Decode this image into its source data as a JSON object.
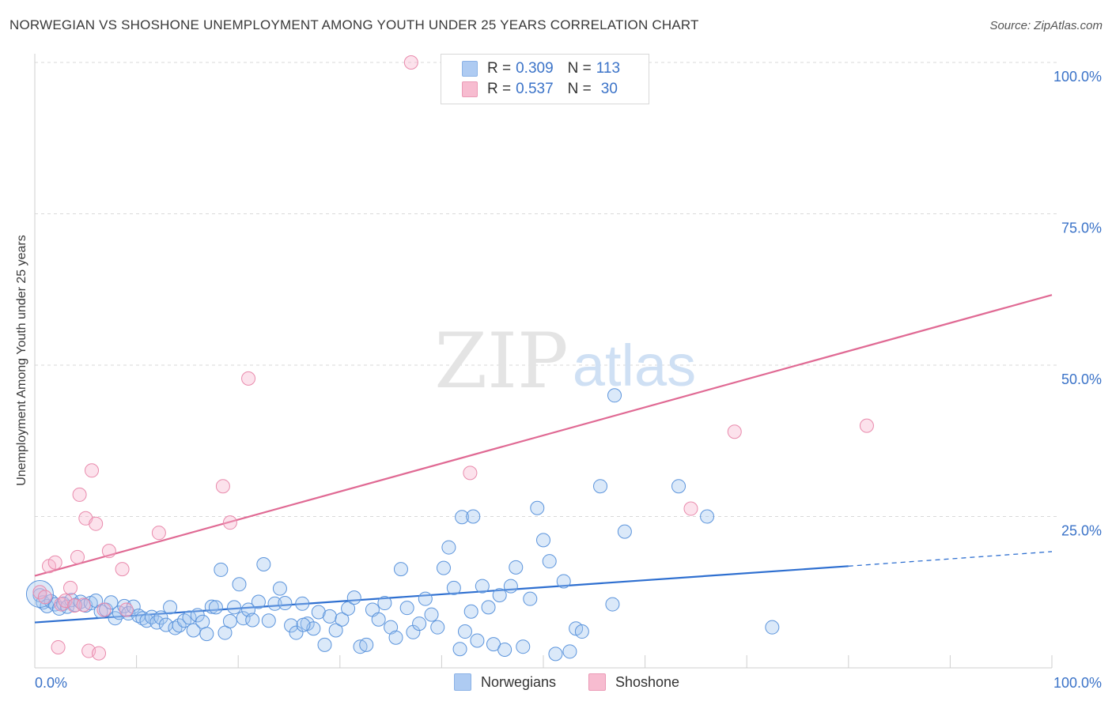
{
  "title": "NORWEGIAN VS SHOSHONE UNEMPLOYMENT AMONG YOUTH UNDER 25 YEARS CORRELATION CHART",
  "source": "Source: ZipAtlas.com",
  "watermark": {
    "zip": "ZIP",
    "atlas": "atlas"
  },
  "legend": {
    "rows": [
      {
        "r_label": "R =",
        "r_value": "0.309",
        "n_label": "N =",
        "n_value": "113",
        "color": "#aecbf2"
      },
      {
        "r_label": "R =",
        "r_value": "0.537",
        "n_label": "N =",
        "n_value": "30",
        "color": "#f7bcd0"
      }
    ]
  },
  "bottom_legend": [
    {
      "label": "Norwegians",
      "color": "#aecbf2"
    },
    {
      "label": "Shoshone",
      "color": "#f7bcd0"
    }
  ],
  "colors": {
    "blue_point_fill": "rgba(160,196,240,0.38)",
    "blue_point_stroke": "#5b94dc",
    "pink_point_fill": "rgba(248,180,204,0.38)",
    "pink_point_stroke": "#e98aac",
    "blue_line": "#2e6fd0",
    "pink_line": "#e06a94",
    "tick_label": "#3b73c8",
    "grid": "#d9d9d9"
  },
  "chart_data": {
    "type": "scatter",
    "title": "NORWEGIAN VS SHOSHONE UNEMPLOYMENT AMONG YOUTH UNDER 25 YEARS CORRELATION CHART",
    "xlabel": "",
    "ylabel": "Unemployment Among Youth under 25 years",
    "xlim": [
      0,
      100
    ],
    "ylim": [
      0,
      100
    ],
    "x_tick_labels": [
      {
        "value": 0,
        "label": "0.0%"
      },
      {
        "value": 100,
        "label": "100.0%"
      }
    ],
    "y_tick_labels": [
      {
        "value": 25,
        "label": "25.0%"
      },
      {
        "value": 50,
        "label": "50.0%"
      },
      {
        "value": 75,
        "label": "75.0%"
      },
      {
        "value": 100,
        "label": "100.0%"
      }
    ],
    "series": [
      {
        "name": "Norwegians",
        "r": 0.309,
        "n": 113,
        "trend": {
          "x0": 0,
          "y0": 7.5,
          "x1": 80,
          "y1": 16.8,
          "dashed_to_x": 100,
          "dashed_to_y": 19.2
        },
        "points": [
          [
            0.5,
            12
          ],
          [
            0.8,
            10.8
          ],
          [
            1.2,
            10.2
          ],
          [
            1.6,
            11
          ],
          [
            2.0,
            10.5
          ],
          [
            2.4,
            9.8
          ],
          [
            2.8,
            10.6
          ],
          [
            3.2,
            10.1
          ],
          [
            3.6,
            11.2
          ],
          [
            4.0,
            10.4
          ],
          [
            4.5,
            10.9
          ],
          [
            5.0,
            10.3
          ],
          [
            5.5,
            10.7
          ],
          [
            6.0,
            11.1
          ],
          [
            6.5,
            9.3
          ],
          [
            7.0,
            9.6
          ],
          [
            7.5,
            10.8
          ],
          [
            7.9,
            8.2
          ],
          [
            8.3,
            9.1
          ],
          [
            8.8,
            10.2
          ],
          [
            9.2,
            9.0
          ],
          [
            9.7,
            10.1
          ],
          [
            10.2,
            8.6
          ],
          [
            10.6,
            8.2
          ],
          [
            11.0,
            7.8
          ],
          [
            11.5,
            8.4
          ],
          [
            12.0,
            7.5
          ],
          [
            12.4,
            8.3
          ],
          [
            12.9,
            7.1
          ],
          [
            13.3,
            10.0
          ],
          [
            13.8,
            6.6
          ],
          [
            14.2,
            7.0
          ],
          [
            14.7,
            7.8
          ],
          [
            15.2,
            8.3
          ],
          [
            15.6,
            6.2
          ],
          [
            16.0,
            8.7
          ],
          [
            16.5,
            7.6
          ],
          [
            16.9,
            5.6
          ],
          [
            17.4,
            10.1
          ],
          [
            17.8,
            10.0
          ],
          [
            18.3,
            16.2
          ],
          [
            18.7,
            5.8
          ],
          [
            19.2,
            7.7
          ],
          [
            19.6,
            10.0
          ],
          [
            20.1,
            13.8
          ],
          [
            20.5,
            8.2
          ],
          [
            21.0,
            9.6
          ],
          [
            21.4,
            7.9
          ],
          [
            22.0,
            10.9
          ],
          [
            22.5,
            17.1
          ],
          [
            23.0,
            7.8
          ],
          [
            23.6,
            10.6
          ],
          [
            24.1,
            13.1
          ],
          [
            24.6,
            10.7
          ],
          [
            25.2,
            7.0
          ],
          [
            25.7,
            5.8
          ],
          [
            26.3,
            10.6
          ],
          [
            26.8,
            7.3
          ],
          [
            27.4,
            6.5
          ],
          [
            27.9,
            9.2
          ],
          [
            28.5,
            3.8
          ],
          [
            29.0,
            8.5
          ],
          [
            29.6,
            6.2
          ],
          [
            30.2,
            8.0
          ],
          [
            30.8,
            9.8
          ],
          [
            31.4,
            11.6
          ],
          [
            32.0,
            3.5
          ],
          [
            32.6,
            3.8
          ],
          [
            33.2,
            9.6
          ],
          [
            33.8,
            8.0
          ],
          [
            34.4,
            10.7
          ],
          [
            35.0,
            6.7
          ],
          [
            35.5,
            5.0
          ],
          [
            36.0,
            16.3
          ],
          [
            36.6,
            9.9
          ],
          [
            37.2,
            5.9
          ],
          [
            37.8,
            7.3
          ],
          [
            38.4,
            11.4
          ],
          [
            39.0,
            8.8
          ],
          [
            39.6,
            6.7
          ],
          [
            40.2,
            16.5
          ],
          [
            40.7,
            19.9
          ],
          [
            41.2,
            13.2
          ],
          [
            41.8,
            3.1
          ],
          [
            42.3,
            6.0
          ],
          [
            42.9,
            9.3
          ],
          [
            43.5,
            4.5
          ],
          [
            44.0,
            13.5
          ],
          [
            44.6,
            10.0
          ],
          [
            45.1,
            3.9
          ],
          [
            45.7,
            12.0
          ],
          [
            46.2,
            3.0
          ],
          [
            46.8,
            13.5
          ],
          [
            47.3,
            16.6
          ],
          [
            48.0,
            3.5
          ],
          [
            48.7,
            11.4
          ],
          [
            49.4,
            26.4
          ],
          [
            50.0,
            21.1
          ],
          [
            50.6,
            17.6
          ],
          [
            51.2,
            2.3
          ],
          [
            52.0,
            14.3
          ],
          [
            52.6,
            2.7
          ],
          [
            53.2,
            6.5
          ],
          [
            53.8,
            6.0
          ],
          [
            55.6,
            30.0
          ],
          [
            56.8,
            10.5
          ],
          [
            58.0,
            22.5
          ],
          [
            63.3,
            30.0
          ],
          [
            66.1,
            25.0
          ],
          [
            72.5,
            6.7
          ],
          [
            42.0,
            24.9
          ],
          [
            43.1,
            25.0
          ],
          [
            26.4,
            7.1
          ]
        ],
        "big_points": [
          [
            0.5,
            12.2
          ]
        ],
        "outlier_high": [
          [
            57.0,
            45.0
          ]
        ]
      },
      {
        "name": "Shoshone",
        "r": 0.537,
        "n": 30,
        "trend": {
          "x0": 0,
          "y0": 15.2,
          "x1": 100,
          "y1": 61.6
        },
        "points": [
          [
            0.5,
            12.5
          ],
          [
            1.0,
            11.7
          ],
          [
            1.4,
            16.8
          ],
          [
            2.0,
            17.4
          ],
          [
            2.3,
            3.4
          ],
          [
            2.6,
            10.5
          ],
          [
            3.0,
            11.1
          ],
          [
            3.5,
            13.2
          ],
          [
            3.9,
            10.3
          ],
          [
            4.2,
            18.3
          ],
          [
            4.4,
            28.6
          ],
          [
            4.8,
            10.4
          ],
          [
            5.0,
            24.7
          ],
          [
            5.3,
            2.8
          ],
          [
            5.6,
            32.6
          ],
          [
            6.0,
            23.8
          ],
          [
            6.3,
            2.4
          ],
          [
            6.8,
            9.6
          ],
          [
            7.3,
            19.3
          ],
          [
            8.6,
            16.3
          ],
          [
            9.0,
            9.6
          ],
          [
            12.2,
            22.3
          ],
          [
            18.5,
            30.0
          ],
          [
            19.2,
            24.0
          ],
          [
            21.0,
            47.8
          ],
          [
            37.0,
            100.0
          ],
          [
            42.8,
            32.2
          ],
          [
            64.5,
            26.3
          ],
          [
            68.8,
            39.0
          ],
          [
            81.8,
            40.0
          ]
        ]
      }
    ]
  }
}
